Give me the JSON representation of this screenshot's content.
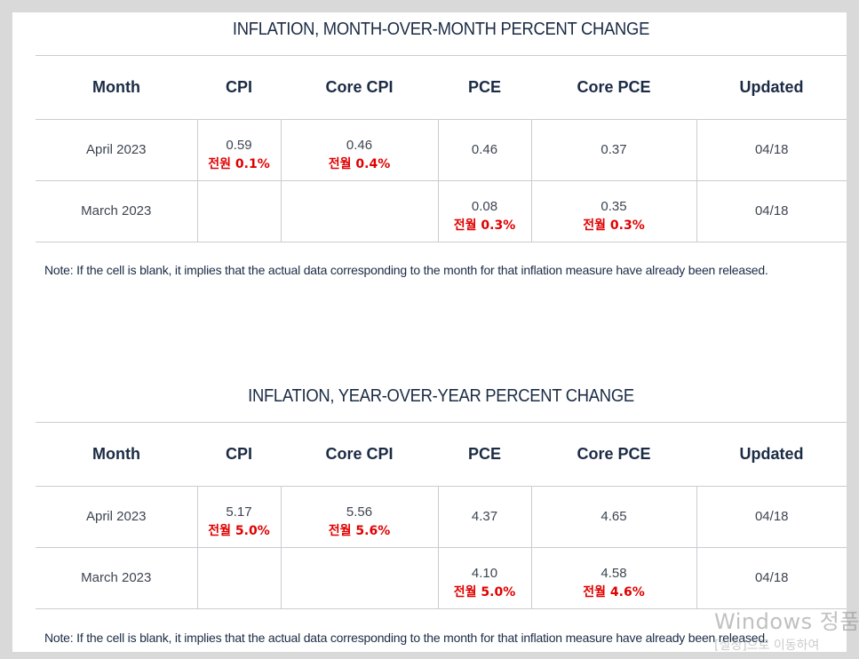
{
  "tables": [
    {
      "title": "INFLATION, MONTH-OVER-MONTH PERCENT CHANGE",
      "headers": [
        "Month",
        "CPI",
        "Core CPI",
        "PCE",
        "Core PCE",
        "Updated"
      ],
      "rows": [
        {
          "month": "April 2023",
          "cpi": "0.59",
          "cpi_note": "전원 0.1%",
          "core_cpi": "0.46",
          "core_cpi_note": "전월 0.4%",
          "pce": "0.46",
          "pce_note": "",
          "core_pce": "0.37",
          "core_pce_note": "",
          "updated": "04/18"
        },
        {
          "month": "March 2023",
          "cpi": "",
          "cpi_note": "",
          "core_cpi": "",
          "core_cpi_note": "",
          "pce": "0.08",
          "pce_note": "전월 0.3%",
          "core_pce": "0.35",
          "core_pce_note": "전월 0.3%",
          "updated": "04/18"
        }
      ],
      "note": "Note: If the cell is blank, it implies that the actual data corresponding to the month for that inflation measure have already been released."
    },
    {
      "title": "INFLATION, YEAR-OVER-YEAR PERCENT CHANGE",
      "headers": [
        "Month",
        "CPI",
        "Core CPI",
        "PCE",
        "Core PCE",
        "Updated"
      ],
      "rows": [
        {
          "month": "April 2023",
          "cpi": "5.17",
          "cpi_note": "전월 5.0%",
          "core_cpi": "5.56",
          "core_cpi_note": "전월 5.6%",
          "pce": "4.37",
          "pce_note": "",
          "core_pce": "4.65",
          "core_pce_note": "",
          "updated": "04/18"
        },
        {
          "month": "March 2023",
          "cpi": "",
          "cpi_note": "",
          "core_cpi": "",
          "core_cpi_note": "",
          "pce": "4.10",
          "pce_note": "전월 5.0%",
          "core_pce": "4.58",
          "core_pce_note": "전월 4.6%",
          "updated": "04/18"
        }
      ],
      "note": "Note: If the cell is blank, it implies that the actual data corresponding to the month for that inflation measure have already been released."
    }
  ],
  "watermark": {
    "line1": "Windows 정품",
    "line2": "[설정]으로 이동하여"
  },
  "colors": {
    "heading": "#1b2b45",
    "annotation_red": "#e00000",
    "border": "#c9ccd1"
  }
}
